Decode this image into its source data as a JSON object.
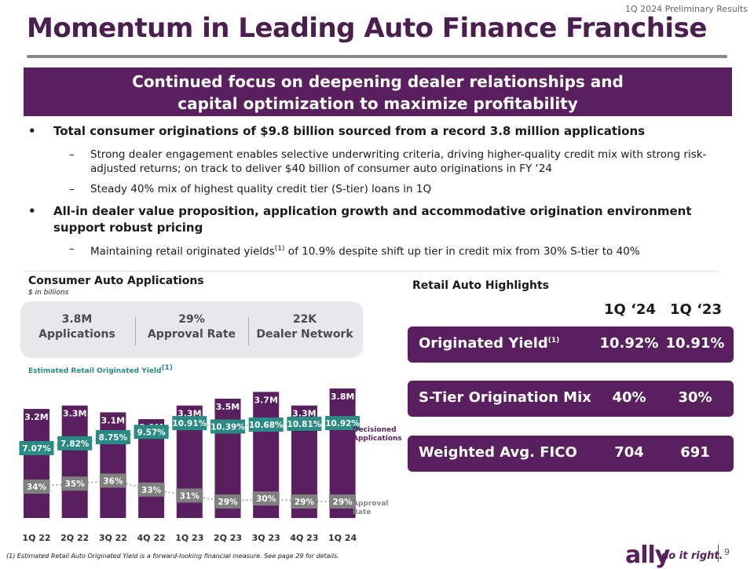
{
  "header": {
    "tag": "1Q 2024 Preliminary Results"
  },
  "title": "Momentum in Leading Auto Finance Franchise",
  "banner": {
    "line1": "Continued focus on deepening dealer relationships and",
    "line2": "capital optimization to maximize profitability"
  },
  "bullets": [
    {
      "text": "Total consumer originations of $9.8 billion sourced from a record 3.8 million applications",
      "subs": [
        "Strong dealer engagement enables selective underwriting criteria, driving higher-quality credit mix with strong risk-adjusted returns; on track to deliver $40 billion of consumer auto originations in FY ‘24",
        "Steady 40% mix of highest quality credit tier (S-tier) loans in 1Q"
      ]
    },
    {
      "text": "All-in dealer value proposition, application growth and accommodative origination environment support robust pricing",
      "subs": [
        {
          "pre": "Maintaining retail originated yields",
          "sup": "(1)",
          "post": " of 10.9% despite shift up tier in credit mix from 30% S-tier to 40%"
        }
      ]
    }
  ],
  "applications_panel": {
    "title": "Consumer Auto Applications",
    "units": "$ in billions",
    "stats": [
      {
        "value": "3.8M",
        "label": "Applications"
      },
      {
        "value": "29%",
        "label": "Approval Rate"
      },
      {
        "value": "22K",
        "label": "Dealer Network"
      }
    ],
    "yield_label": "Estimated Retail Originated Yield",
    "yield_label_sup": "(1)"
  },
  "chart_data": {
    "type": "bar",
    "categories": [
      "1Q 22",
      "2Q 22",
      "3Q 22",
      "4Q 22",
      "1Q 23",
      "2Q 23",
      "3Q 23",
      "4Q 23",
      "1Q 24"
    ],
    "series": [
      {
        "name": "Decisioned Applications",
        "values": [
          3.2,
          3.3,
          3.1,
          2.9,
          3.3,
          3.5,
          3.7,
          3.3,
          3.8
        ],
        "labels": [
          "3.2M",
          "3.3M",
          "3.1M",
          "2.9M",
          "3.3M",
          "3.5M",
          "3.7M",
          "3.3M",
          "3.8M"
        ]
      },
      {
        "name": "Approval Rate",
        "values": [
          34,
          35,
          36,
          33,
          31,
          29,
          30,
          29,
          29
        ],
        "labels": [
          "34%",
          "35%",
          "36%",
          "33%",
          "31%",
          "29%",
          "30%",
          "29%",
          "29%"
        ]
      },
      {
        "name": "Estimated Retail Originated Yield",
        "values": [
          7.07,
          7.82,
          8.75,
          9.57,
          10.91,
          10.39,
          10.68,
          10.81,
          10.92
        ],
        "labels": [
          "7.07%",
          "7.82%",
          "8.75%",
          "9.57%",
          "10.91%",
          "10.39%",
          "10.68%",
          "10.81%",
          "10.92%"
        ]
      }
    ],
    "legend": {
      "decisioned": "Decisioned Applications",
      "approval": "Approval Rate"
    },
    "colors": {
      "bar": "#5a1f5e",
      "approval": "#808080",
      "yield": "#2a8a84"
    }
  },
  "highlights": {
    "title": "Retail Auto Highlights",
    "col1": "1Q ‘24",
    "col2": "1Q ‘23",
    "rows": [
      {
        "label": "Originated Yield",
        "sup": "(1)",
        "v1": "10.92%",
        "v2": "10.91%"
      },
      {
        "label": "S-Tier Origination Mix",
        "sup": "",
        "v1": "40%",
        "v2": "30%"
      },
      {
        "label": "Weighted Avg. FICO",
        "sup": "",
        "v1": "704",
        "v2": "691"
      }
    ]
  },
  "footnote": "(1)    Estimated Retail Auto Originated Yield is a forward-looking financial measure. See page 29 for details.",
  "logo": {
    "brand": "ally",
    "tagline": "do it right."
  },
  "page_number": "9"
}
